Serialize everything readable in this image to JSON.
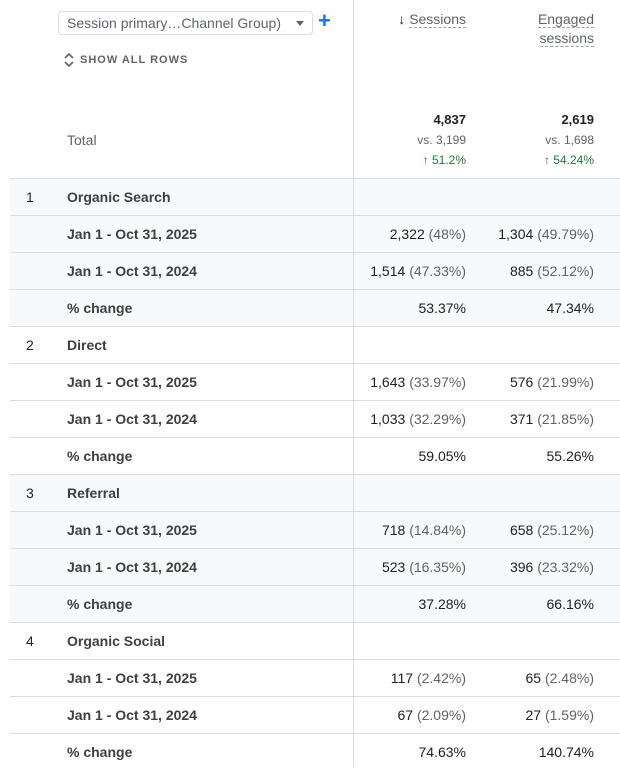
{
  "dimension_selector": {
    "label": "Session primary…Channel Group)"
  },
  "add_dimension": "+",
  "show_all_rows": "SHOW ALL ROWS",
  "columns": [
    {
      "label": "Sessions",
      "sorted": "descending"
    },
    {
      "label_line1": "Engaged",
      "label_line2": "sessions"
    }
  ],
  "total": {
    "label": "Total",
    "sessions": {
      "value": "4,837",
      "vs": "vs. 3,199",
      "change": "↑ 51.2%"
    },
    "engaged": {
      "value": "2,619",
      "vs": "vs. 1,698",
      "change": "↑ 54.24%"
    }
  },
  "groups": [
    {
      "index": "1",
      "name": "Organic Search",
      "rows": [
        {
          "label": "Jan 1 - Oct 31, 2025",
          "s": "2,322",
          "sp": "(48%)",
          "e": "1,304",
          "ep": "(49.79%)"
        },
        {
          "label": "Jan 1 - Oct 31, 2024",
          "s": "1,514",
          "sp": "(47.33%)",
          "e": "885",
          "ep": "(52.12%)"
        },
        {
          "label": "% change",
          "s": "53.37%",
          "sp": "",
          "e": "47.34%",
          "ep": ""
        }
      ]
    },
    {
      "index": "2",
      "name": "Direct",
      "rows": [
        {
          "label": "Jan 1 - Oct 31, 2025",
          "s": "1,643",
          "sp": "(33.97%)",
          "e": "576",
          "ep": "(21.99%)"
        },
        {
          "label": "Jan 1 - Oct 31, 2024",
          "s": "1,033",
          "sp": "(32.29%)",
          "e": "371",
          "ep": "(21.85%)"
        },
        {
          "label": "% change",
          "s": "59.05%",
          "sp": "",
          "e": "55.26%",
          "ep": ""
        }
      ]
    },
    {
      "index": "3",
      "name": "Referral",
      "rows": [
        {
          "label": "Jan 1 - Oct 31, 2025",
          "s": "718",
          "sp": "(14.84%)",
          "e": "658",
          "ep": "(25.12%)"
        },
        {
          "label": "Jan 1 - Oct 31, 2024",
          "s": "523",
          "sp": "(16.35%)",
          "e": "396",
          "ep": "(23.32%)"
        },
        {
          "label": "% change",
          "s": "37.28%",
          "sp": "",
          "e": "66.16%",
          "ep": ""
        }
      ]
    },
    {
      "index": "4",
      "name": "Organic Social",
      "rows": [
        {
          "label": "Jan 1 - Oct 31, 2025",
          "s": "117",
          "sp": "(2.42%)",
          "e": "65",
          "ep": "(2.48%)"
        },
        {
          "label": "Jan 1 - Oct 31, 2024",
          "s": "67",
          "sp": "(2.09%)",
          "e": "27",
          "ep": "(1.59%)"
        },
        {
          "label": "% change",
          "s": "74.63%",
          "sp": "",
          "e": "140.74%",
          "ep": ""
        }
      ]
    }
  ]
}
